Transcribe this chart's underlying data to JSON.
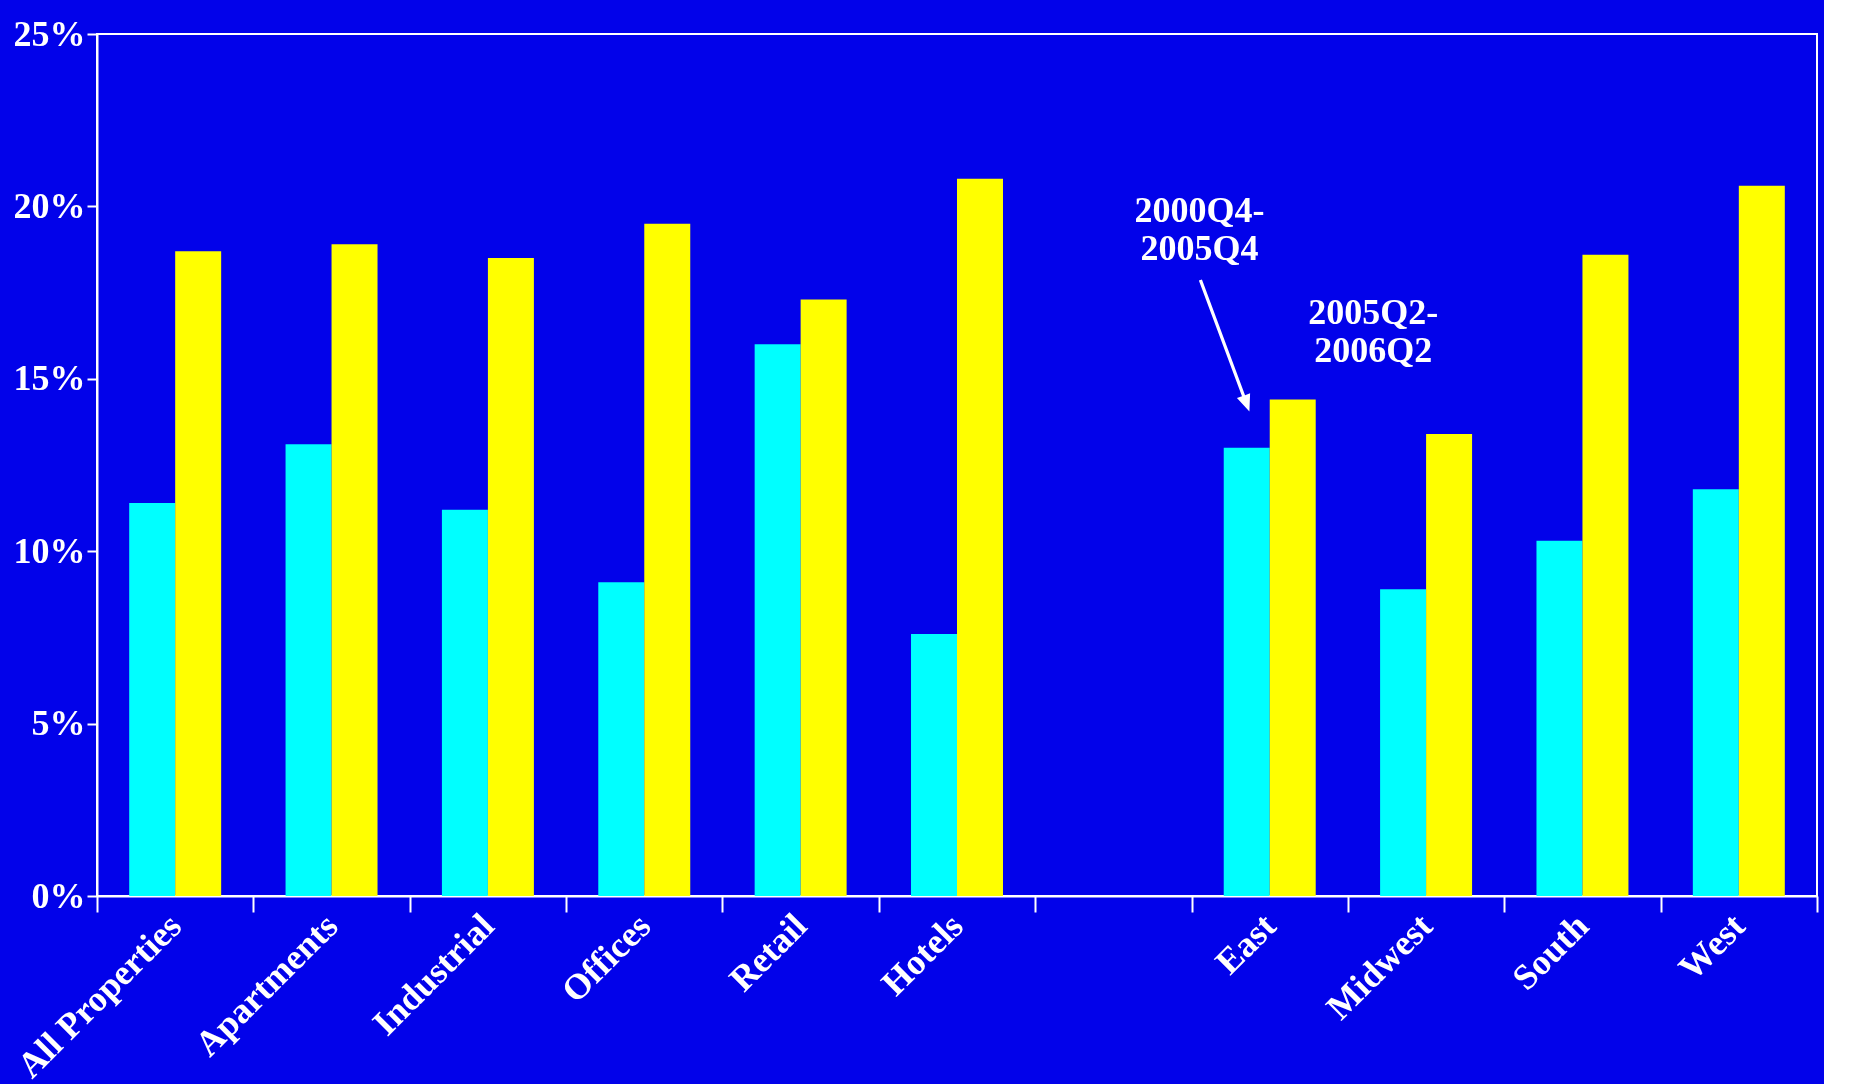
{
  "chart_data": {
    "type": "bar",
    "categories": [
      "All Properties",
      "Apartments",
      "Industrial",
      "Offices",
      "Retail",
      "Hotels",
      null,
      "East",
      "Midwest",
      "South",
      "West"
    ],
    "series": [
      {
        "color": "#00ffff",
        "values": [
          11.4,
          13.1,
          11.2,
          9.1,
          16.0,
          7.6,
          null,
          13.0,
          8.9,
          10.3,
          11.8
        ]
      },
      {
        "color": "#ffff00",
        "values": [
          18.7,
          18.9,
          18.5,
          19.5,
          17.3,
          20.8,
          null,
          14.4,
          13.4,
          18.6,
          20.6
        ]
      }
    ],
    "ylim": [
      0,
      25
    ],
    "yticks": [
      {
        "value": 0,
        "label": "0%"
      },
      {
        "value": 5,
        "label": "5%"
      },
      {
        "value": 10,
        "label": "10%"
      },
      {
        "value": 15,
        "label": "15%"
      },
      {
        "value": 20,
        "label": "20%"
      },
      {
        "value": 25,
        "label": "25%"
      }
    ],
    "annotations": [
      "2000Q4-\n2005Q4",
      "2005Q2-\n2006Q2"
    ],
    "grid": false,
    "legend": false
  }
}
